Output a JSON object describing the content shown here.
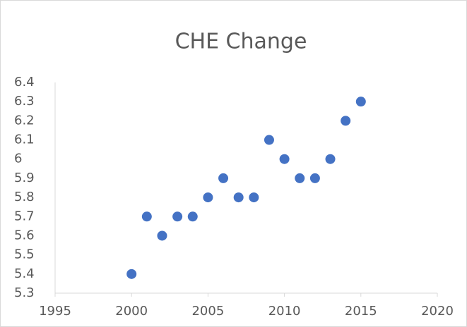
{
  "chart_data": {
    "type": "scatter",
    "title": "CHE Change",
    "series": [
      {
        "color": "#4472c4",
        "x": [
          2000,
          2001,
          2002,
          2003,
          2004,
          2005,
          2006,
          2007,
          2008,
          2009,
          2010,
          2011,
          2012,
          2013,
          2014,
          2015
        ],
        "values": [
          5.4,
          5.7,
          5.6,
          5.7,
          5.7,
          5.8,
          5.9,
          5.8,
          5.8,
          6.1,
          6.0,
          5.9,
          5.9,
          6.0,
          6.2,
          6.3
        ]
      }
    ],
    "xlim": [
      1995,
      2020
    ],
    "xticks": [
      1995,
      2000,
      2005,
      2010,
      2015,
      2020
    ],
    "ylim": [
      5.3,
      6.4
    ],
    "yticks": [
      5.3,
      5.4,
      5.5,
      5.6,
      5.7,
      5.8,
      5.9,
      6,
      6.1,
      6.2,
      6.3,
      6.4
    ],
    "grid": false
  }
}
